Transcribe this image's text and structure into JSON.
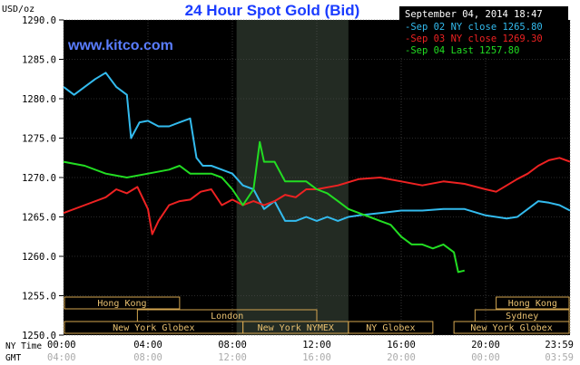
{
  "chart_data": {
    "type": "line",
    "title": "24 Hour Spot Gold (Bid)",
    "watermark": "www.kitco.com",
    "ylabel": "USD/oz",
    "timestamp": "September 04, 2014 18:47",
    "ylim": [
      1250,
      1290
    ],
    "yticks": [
      "1290.0",
      "1285.0",
      "1280.0",
      "1275.0",
      "1270.0",
      "1265.0",
      "1260.0",
      "1255.0",
      "1250.0"
    ],
    "xlim_hours": [
      0,
      24
    ],
    "x_axis_label_ny": "NY Time",
    "x_axis_label_gmt": "GMT",
    "xticks": [
      {
        "hour": 0,
        "ny": "00:00",
        "gmt": "04:00"
      },
      {
        "hour": 4,
        "ny": "04:00",
        "gmt": "08:00"
      },
      {
        "hour": 8,
        "ny": "08:00",
        "gmt": "12:00"
      },
      {
        "hour": 12,
        "ny": "12:00",
        "gmt": "16:00"
      },
      {
        "hour": 16,
        "ny": "16:00",
        "gmt": "20:00"
      },
      {
        "hour": 20,
        "ny": "20:00",
        "gmt": "00:00"
      },
      {
        "hour": 24,
        "ny": "23:59",
        "gmt": "03:59"
      }
    ],
    "shaded_region_hours": [
      8.2,
      13.5
    ],
    "legend": [
      {
        "text": "Sep 02 NY close 1265.80",
        "color": "#33bbee"
      },
      {
        "text": "Sep 03 NY close 1269.30",
        "color": "#ee2222"
      },
      {
        "text": "Sep 04 Last 1257.80",
        "color": "#22dd22"
      }
    ],
    "series": [
      {
        "name": "Sep 02",
        "color": "#33bbee",
        "x": [
          0,
          0.5,
          1,
          1.5,
          2,
          2.5,
          3,
          3.2,
          3.6,
          4,
          4.5,
          5,
          5.5,
          6,
          6.3,
          6.6,
          7,
          7.5,
          8,
          8.5,
          9,
          9.5,
          10,
          10.5,
          11,
          11.5,
          12,
          12.5,
          13,
          13.5,
          14,
          15,
          16,
          17,
          18,
          19,
          20,
          20.5,
          21,
          21.5,
          22,
          22.5,
          23,
          23.5,
          24
        ],
        "values": [
          1281.5,
          1280.5,
          1281.5,
          1282.5,
          1283.3,
          1281.5,
          1280.5,
          1275.0,
          1277.0,
          1277.2,
          1276.5,
          1276.5,
          1277.0,
          1277.5,
          1272.5,
          1271.5,
          1271.5,
          1271.0,
          1270.5,
          1269.0,
          1268.5,
          1266.0,
          1267.0,
          1264.5,
          1264.5,
          1265.0,
          1264.5,
          1265.0,
          1264.5,
          1265.0,
          1265.2,
          1265.5,
          1265.8,
          1265.8,
          1266.0,
          1266.0,
          1265.2,
          1265.0,
          1264.8,
          1265.0,
          1266.0,
          1267.0,
          1266.8,
          1266.5,
          1265.8
        ]
      },
      {
        "name": "Sep 03",
        "color": "#ee2222",
        "x": [
          0,
          1,
          2,
          2.5,
          3,
          3.5,
          4,
          4.2,
          4.5,
          5,
          5.5,
          6,
          6.5,
          7,
          7.5,
          8,
          8.5,
          9,
          9.5,
          10,
          10.5,
          11,
          11.5,
          12,
          13,
          14,
          15,
          16,
          17,
          18,
          19,
          20,
          20.5,
          21,
          21.5,
          22,
          22.5,
          23,
          23.5,
          24
        ],
        "values": [
          1265.5,
          1266.5,
          1267.5,
          1268.5,
          1268.0,
          1268.8,
          1266.0,
          1262.8,
          1264.5,
          1266.5,
          1267.0,
          1267.2,
          1268.2,
          1268.5,
          1266.5,
          1267.2,
          1266.5,
          1267.0,
          1266.5,
          1267.0,
          1267.8,
          1267.5,
          1268.5,
          1268.5,
          1269.0,
          1269.8,
          1270.0,
          1269.5,
          1269.0,
          1269.5,
          1269.2,
          1268.5,
          1268.2,
          1269.0,
          1269.8,
          1270.5,
          1271.5,
          1272.2,
          1272.5,
          1272.0
        ]
      },
      {
        "name": "Sep 04",
        "color": "#22dd22",
        "x": [
          0,
          1,
          2,
          3,
          4,
          5,
          5.5,
          6,
          7,
          7.5,
          8,
          8.5,
          9,
          9.3,
          9.5,
          10,
          10.5,
          11,
          11.5,
          12,
          12.5,
          13,
          13.5,
          14,
          14.5,
          15,
          15.5,
          16,
          16.5,
          17,
          17.5,
          18,
          18.5,
          18.7,
          19
        ],
        "values": [
          1272.0,
          1271.5,
          1270.5,
          1270.0,
          1270.5,
          1271.0,
          1271.5,
          1270.5,
          1270.5,
          1270.0,
          1268.5,
          1266.5,
          1268.5,
          1274.5,
          1272.0,
          1272.0,
          1269.5,
          1269.5,
          1269.5,
          1268.5,
          1268.0,
          1267.0,
          1266.0,
          1265.5,
          1265.0,
          1264.5,
          1264.0,
          1262.5,
          1261.5,
          1261.5,
          1261.0,
          1261.5,
          1260.5,
          1258.0,
          1258.2
        ]
      }
    ],
    "sessions": [
      {
        "label": "Hong Kong",
        "row": 0,
        "start": 0,
        "end": 5.5
      },
      {
        "label": "London",
        "row": 1,
        "start": 3.5,
        "end": 12.0
      },
      {
        "label": "New York Globex",
        "row": 2,
        "start": 0,
        "end": 8.5
      },
      {
        "label": "New York NYMEX",
        "row": 2,
        "start": 8.5,
        "end": 13.5
      },
      {
        "label": "NY Globex",
        "row": 2,
        "start": 13.5,
        "end": 17.5
      },
      {
        "label": "Hong Kong",
        "row": 0,
        "start": 20.5,
        "end": 24
      },
      {
        "label": "Sydney",
        "row": 1,
        "start": 19.5,
        "end": 24
      },
      {
        "label": "New York Globex",
        "row": 2,
        "start": 18.5,
        "end": 24
      }
    ]
  }
}
